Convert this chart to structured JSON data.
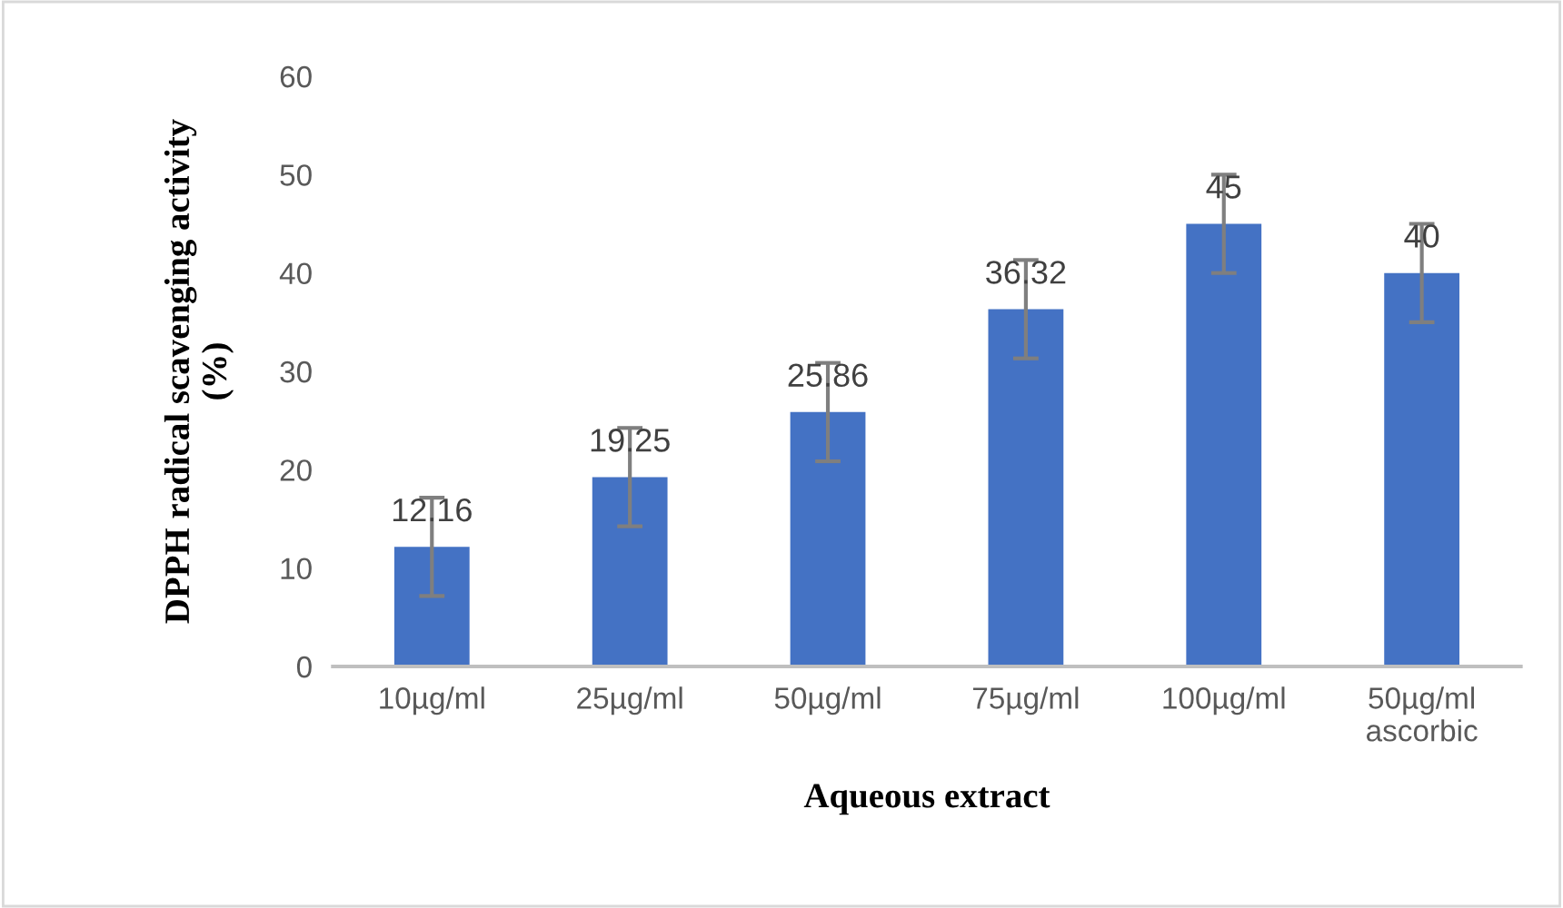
{
  "chart_data": {
    "type": "bar",
    "xlabel": "Aqueous extract",
    "ylabel": "DPPH radical scavenging activity\n(%)",
    "categories": [
      "10µg/ml",
      "25µg/ml",
      "50µg/ml",
      "75µg/ml",
      "100µg/ml",
      "50µg/ml\nascorbic"
    ],
    "values": [
      12.16,
      19.25,
      25.86,
      36.32,
      45,
      40
    ],
    "errors": [
      5,
      5,
      5,
      5,
      5,
      5
    ],
    "color": "#4472c4",
    "data_labels": true,
    "ylim": [
      0,
      60
    ],
    "yticks": [
      0,
      10,
      20,
      30,
      40,
      50,
      60
    ],
    "grid": false
  }
}
